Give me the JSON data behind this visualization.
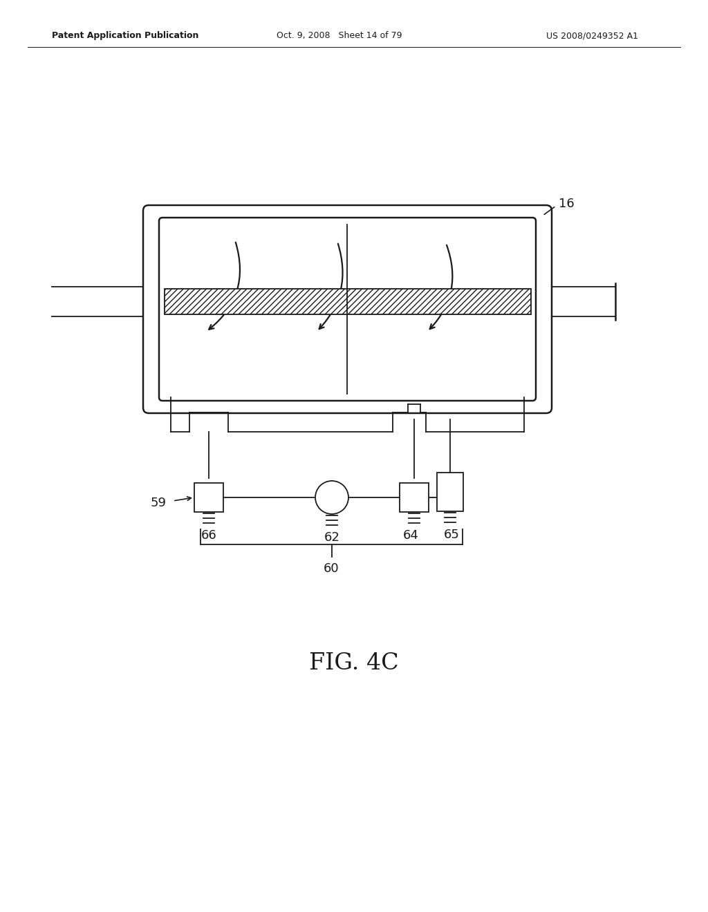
{
  "bg_color": "#ffffff",
  "line_color": "#1a1a1a",
  "header_left": "Patent Application Publication",
  "header_mid": "Oct. 9, 2008   Sheet 14 of 79",
  "header_right": "US 2008/0249352 A1",
  "fig_label": "FIG. 4C",
  "label_16": "16",
  "label_59": "59",
  "label_60": "60",
  "label_62": "62",
  "label_64": "64",
  "label_65": "65",
  "label_66": "66"
}
